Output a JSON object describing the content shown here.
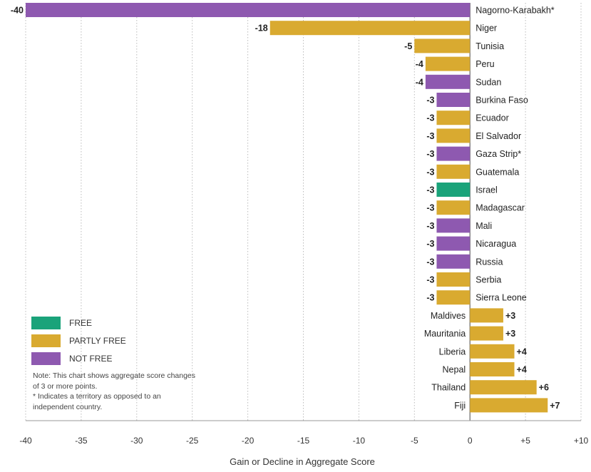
{
  "chart_data": {
    "type": "bar",
    "orientation": "horizontal",
    "xlabel": "Gain or Decline in Aggregate Score",
    "xlim": [
      -40,
      10
    ],
    "x_ticks": [
      "-40",
      "-35",
      "-30",
      "-25",
      "-20",
      "-15",
      "-10",
      "-5",
      "0",
      "+5",
      "+10"
    ],
    "grid": true,
    "bars": [
      {
        "name": "Nagorno-Karabakh*",
        "value": -40,
        "label": "-40",
        "status": "not_free"
      },
      {
        "name": "Niger",
        "value": -18,
        "label": "-18",
        "status": "partly_free"
      },
      {
        "name": "Tunisia",
        "value": -5,
        "label": "-5",
        "status": "partly_free"
      },
      {
        "name": "Peru",
        "value": -4,
        "label": "-4",
        "status": "partly_free"
      },
      {
        "name": "Sudan",
        "value": -4,
        "label": "-4",
        "status": "not_free"
      },
      {
        "name": "Burkina Faso",
        "value": -3,
        "label": "-3",
        "status": "not_free"
      },
      {
        "name": "Ecuador",
        "value": -3,
        "label": "-3",
        "status": "partly_free"
      },
      {
        "name": "El Salvador",
        "value": -3,
        "label": "-3",
        "status": "partly_free"
      },
      {
        "name": "Gaza Strip*",
        "value": -3,
        "label": "-3",
        "status": "not_free"
      },
      {
        "name": "Guatemala",
        "value": -3,
        "label": "-3",
        "status": "partly_free"
      },
      {
        "name": "Israel",
        "value": -3,
        "label": "-3",
        "status": "free"
      },
      {
        "name": "Madagascar",
        "value": -3,
        "label": "-3",
        "status": "partly_free"
      },
      {
        "name": "Mali",
        "value": -3,
        "label": "-3",
        "status": "not_free"
      },
      {
        "name": "Nicaragua",
        "value": -3,
        "label": "-3",
        "status": "not_free"
      },
      {
        "name": "Russia",
        "value": -3,
        "label": "-3",
        "status": "not_free"
      },
      {
        "name": "Serbia",
        "value": -3,
        "label": "-3",
        "status": "partly_free"
      },
      {
        "name": "Sierra Leone",
        "value": -3,
        "label": "-3",
        "status": "partly_free"
      },
      {
        "name": "Maldives",
        "value": 3,
        "label": "+3",
        "status": "partly_free"
      },
      {
        "name": "Mauritania",
        "value": 3,
        "label": "+3",
        "status": "partly_free"
      },
      {
        "name": "Liberia",
        "value": 4,
        "label": "+4",
        "status": "partly_free"
      },
      {
        "name": "Nepal",
        "value": 4,
        "label": "+4",
        "status": "partly_free"
      },
      {
        "name": "Thailand",
        "value": 6,
        "label": "+6",
        "status": "partly_free"
      },
      {
        "name": "Fiji",
        "value": 7,
        "label": "+7",
        "status": "partly_free"
      }
    ],
    "colors": {
      "free": "#1aa37a",
      "partly_free": "#d9aa30",
      "not_free": "#8e59b0"
    }
  },
  "legend": [
    {
      "key": "free",
      "label": "FREE"
    },
    {
      "key": "partly_free",
      "label": "PARTLY FREE"
    },
    {
      "key": "not_free",
      "label": "NOT FREE"
    }
  ],
  "note": {
    "line1": "Note: This chart shows aggregate score changes of 3 or more points.",
    "line2": "* Indicates a territory as opposed to an independent country."
  }
}
